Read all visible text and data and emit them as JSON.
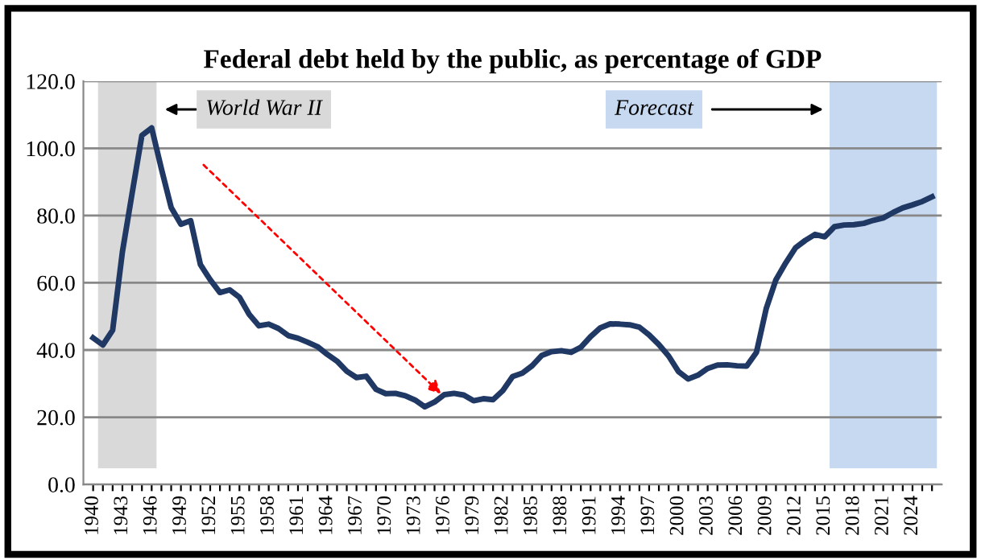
{
  "chart_data": {
    "type": "line",
    "title": "Federal debt held by the public, as percentage of GDP",
    "categories": [
      "1940",
      null,
      null,
      "1943",
      null,
      null,
      "1946",
      null,
      null,
      "1949",
      null,
      null,
      "1952",
      null,
      null,
      "1955",
      null,
      null,
      "1958",
      null,
      null,
      "1961",
      null,
      null,
      "1964",
      null,
      null,
      "1967",
      null,
      null,
      "1970",
      null,
      null,
      "1973",
      null,
      null,
      "1976",
      null,
      null,
      "1979",
      null,
      null,
      "1982",
      null,
      null,
      "1985",
      null,
      null,
      "1988",
      null,
      null,
      "1991",
      null,
      null,
      "1994",
      null,
      null,
      "1997",
      null,
      null,
      "2000",
      null,
      null,
      "2003",
      null,
      null,
      "2006",
      null,
      null,
      "2009",
      null,
      null,
      "2012",
      null,
      null,
      "2015",
      null,
      null,
      "2018",
      null,
      null,
      "2021",
      null,
      null,
      "2024",
      null,
      null
    ],
    "series": [
      {
        "color": "#1f3864",
        "values": [
          43.6,
          41.5,
          45.9,
          69.2,
          86.7,
          103.9,
          106.1,
          93.9,
          82.4,
          77.4,
          78.5,
          65.4,
          60.9,
          57.1,
          57.9,
          55.7,
          50.6,
          47.2,
          47.7,
          46.4,
          44.3,
          43.5,
          42.3,
          41.0,
          38.7,
          36.7,
          33.7,
          31.8,
          32.2,
          28.3,
          27.0,
          27.1,
          26.4,
          25.1,
          23.1,
          24.5,
          26.7,
          27.1,
          26.6,
          24.9,
          25.5,
          25.2,
          27.9,
          32.1,
          33.1,
          35.3,
          38.4,
          39.5,
          39.8,
          39.3,
          40.8,
          44.0,
          46.6,
          47.8,
          47.7,
          47.5,
          46.8,
          44.5,
          41.6,
          38.2,
          33.6,
          31.4,
          32.5,
          34.5,
          35.5,
          35.6,
          35.3,
          35.2,
          39.3,
          52.3,
          60.9,
          65.9,
          70.4,
          72.6,
          74.4,
          73.7,
          76.7,
          77.2,
          77.3,
          77.7,
          78.6,
          79.3,
          80.9,
          82.3,
          83.2,
          84.2,
          85.6
        ]
      }
    ],
    "annotations": [
      "World War II",
      "Forecast"
    ],
    "ylim": [
      0,
      120
    ],
    "yticks": [
      {
        "value": 0,
        "label": "0.0"
      },
      {
        "value": 20,
        "label": "20.0"
      },
      {
        "value": 40,
        "label": "40.0"
      },
      {
        "value": 60,
        "label": "60.0"
      },
      {
        "value": 80,
        "label": "80.0"
      },
      {
        "value": 100,
        "label": "100.0"
      },
      {
        "value": 120,
        "label": "120.0"
      }
    ],
    "grid": "y",
    "line_style": "solid",
    "marker": "none",
    "legend": false
  }
}
